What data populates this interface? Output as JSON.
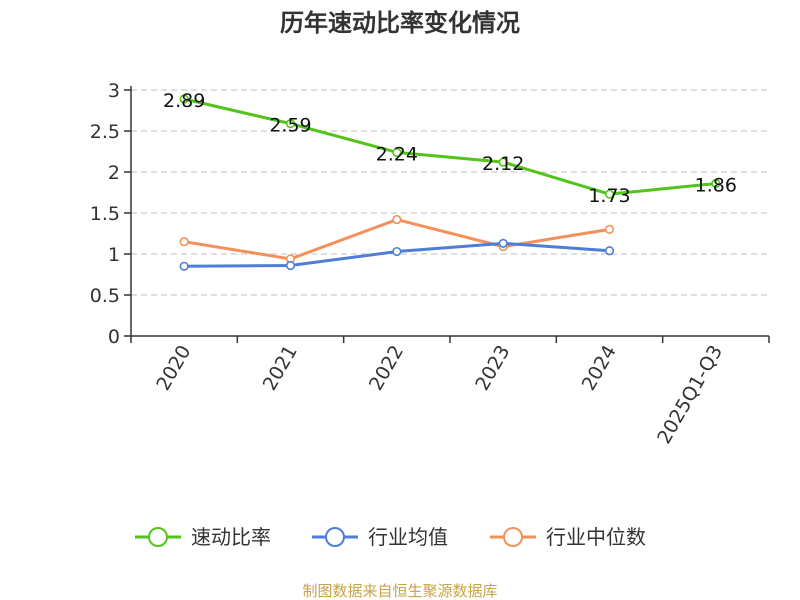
{
  "chart_data": {
    "type": "line",
    "title": "历年速动比率变化情况",
    "categories": [
      "2020",
      "2021",
      "2022",
      "2023",
      "2024",
      "2025Q1-Q3"
    ],
    "ylim": [
      0,
      3
    ],
    "yticks": [
      "0",
      "0.5",
      "1",
      "1.5",
      "2",
      "2.5",
      "3"
    ],
    "grid": true,
    "legend_position": "bottom",
    "series": [
      {
        "name": "速动比率",
        "color": "#52c41a",
        "values": [
          2.89,
          2.59,
          2.24,
          2.12,
          1.73,
          1.86
        ],
        "labels": [
          "2.89",
          "2.59",
          "2.24",
          "2.12",
          "1.73",
          "1.86"
        ]
      },
      {
        "name": "行业均值",
        "color": "#4f7ed8",
        "values": [
          0.85,
          0.86,
          1.03,
          1.13,
          1.04,
          null
        ]
      },
      {
        "name": "行业中位数",
        "color": "#f4915a",
        "values": [
          1.15,
          0.94,
          1.42,
          1.09,
          1.3,
          null
        ]
      }
    ],
    "source": "制图数据来自恒生聚源数据库",
    "source_color": "#c8a44a"
  }
}
